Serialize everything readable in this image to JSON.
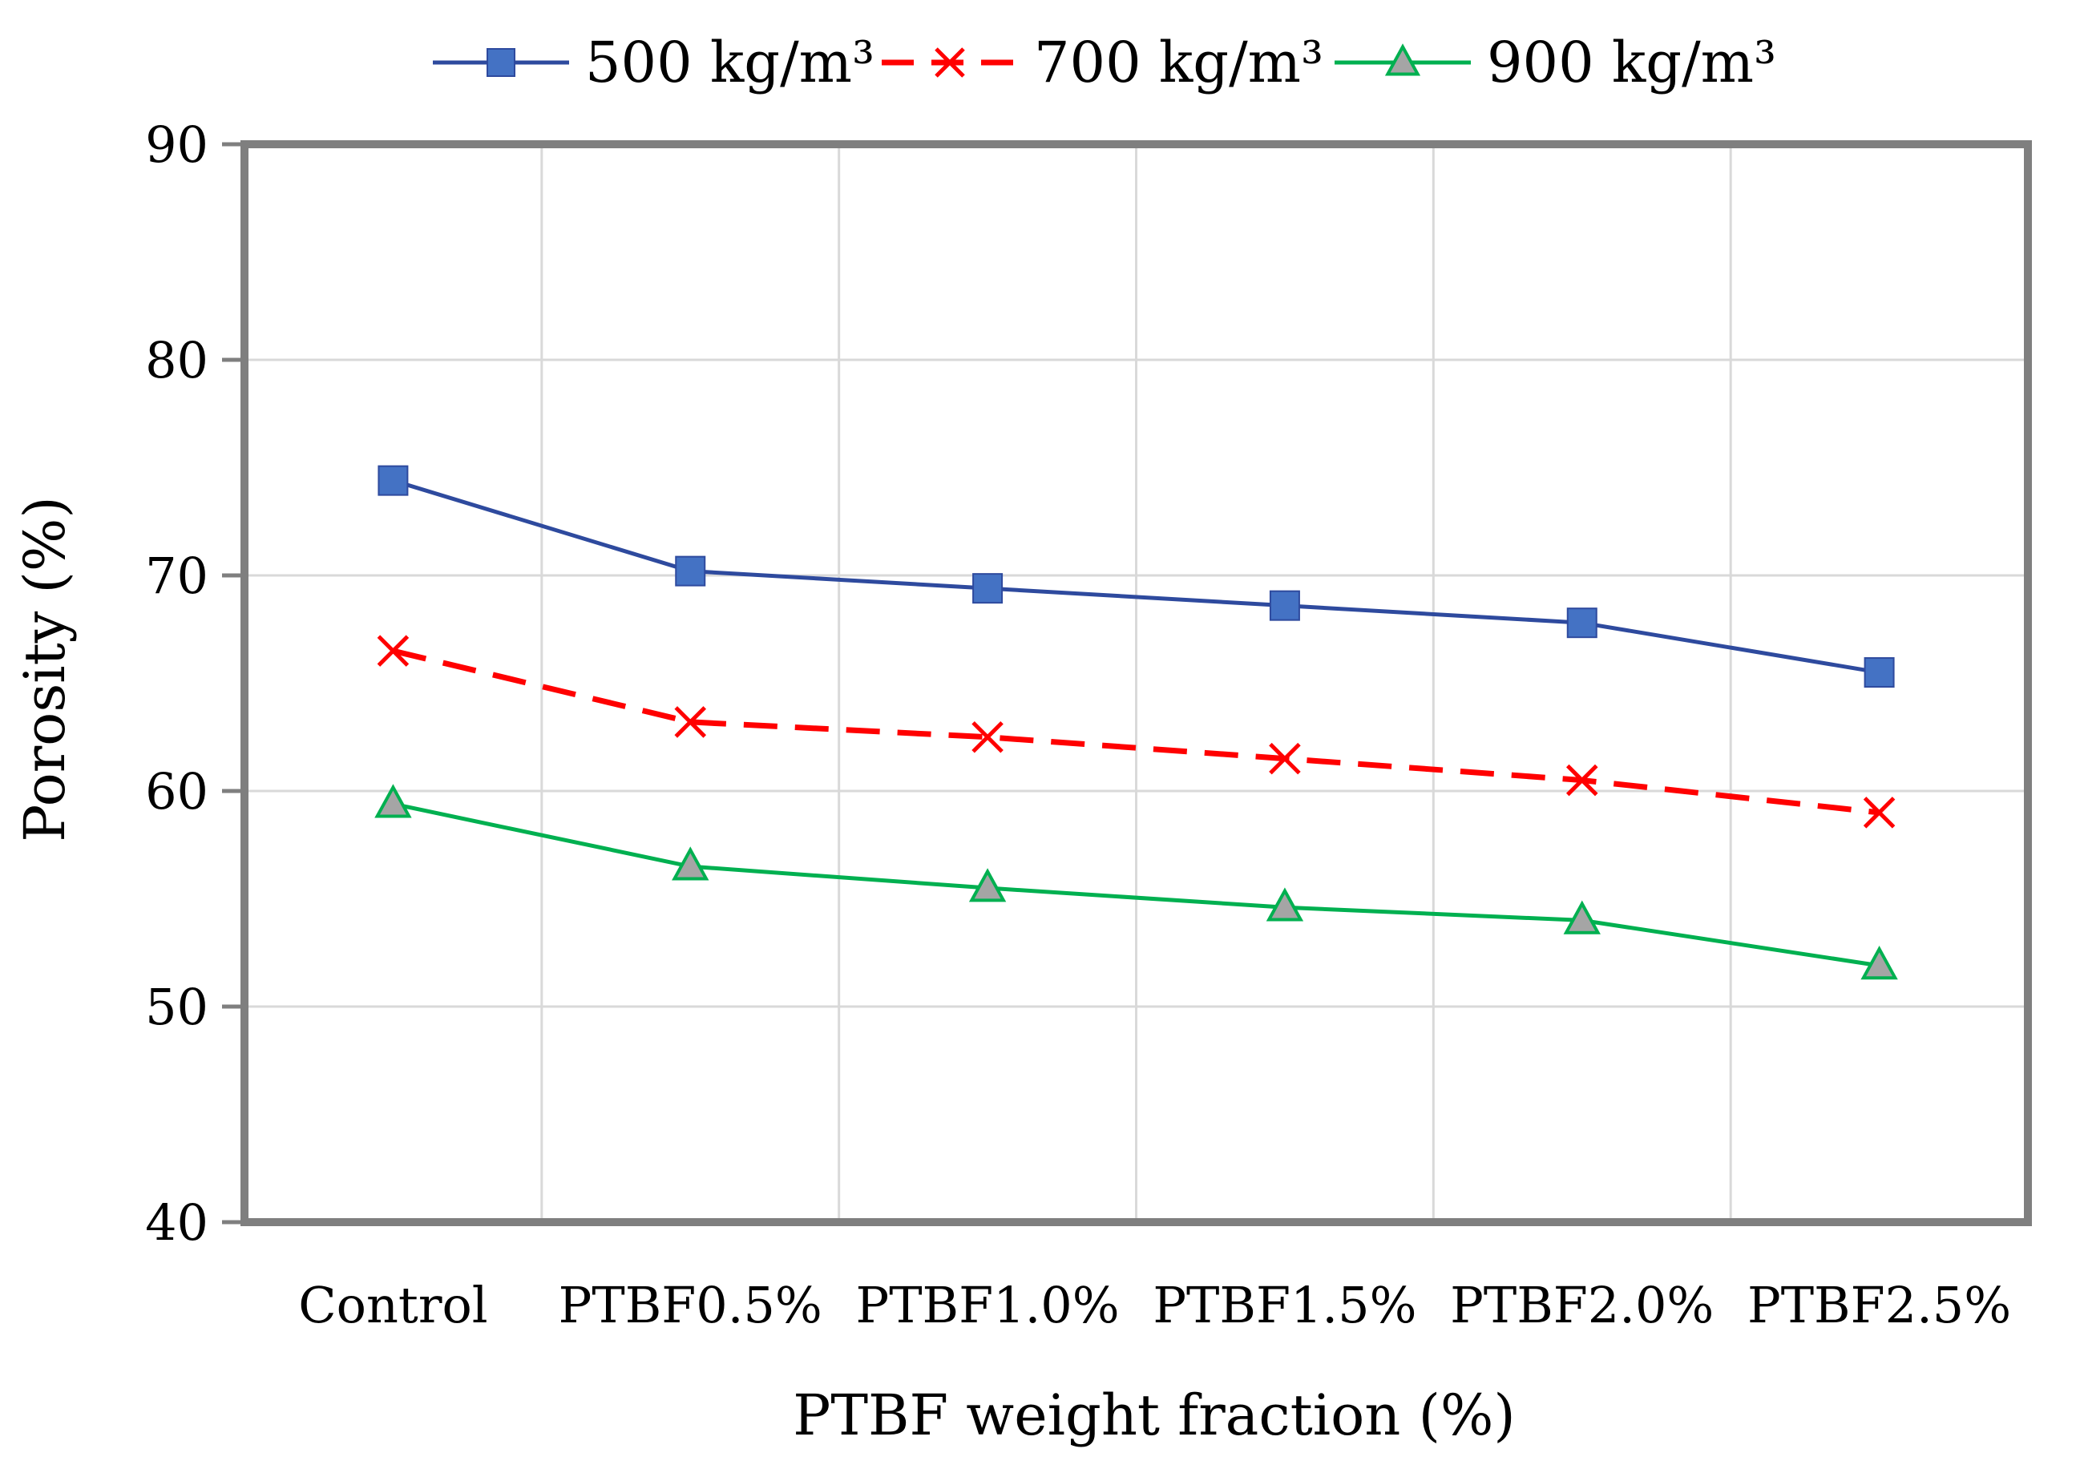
{
  "chart_data": {
    "type": "line",
    "title": "",
    "xlabel": "PTBF weight fraction (%)",
    "ylabel": "Porosity (%)",
    "ylim": [
      40,
      90
    ],
    "yticks": [
      40,
      50,
      60,
      70,
      80,
      90
    ],
    "grid": true,
    "legend_position": "top-center",
    "categories": [
      "Control",
      "PTBF0.5%",
      "PTBF1.0%",
      "PTBF1.5%",
      "PTBF2.0%",
      "PTBF2.5%"
    ],
    "series": [
      {
        "name": "500 kg/m³",
        "color": "#2e4a9e",
        "marker": "square",
        "marker_color": "#4472c4",
        "dash": "solid",
        "values": [
          74.4,
          70.2,
          69.4,
          68.6,
          67.8,
          65.5
        ]
      },
      {
        "name": "700 kg/m³",
        "color": "#ff0000",
        "marker": "x",
        "marker_color": "#ff0000",
        "dash": "dashed",
        "values": [
          66.5,
          63.2,
          62.5,
          61.5,
          60.5,
          59.0
        ]
      },
      {
        "name": "900 kg/m³",
        "color": "#00b050",
        "marker": "triangle",
        "marker_color": "#a5a5a5",
        "dash": "solid",
        "values": [
          59.4,
          56.5,
          55.5,
          54.6,
          54.0,
          51.9
        ]
      }
    ]
  }
}
